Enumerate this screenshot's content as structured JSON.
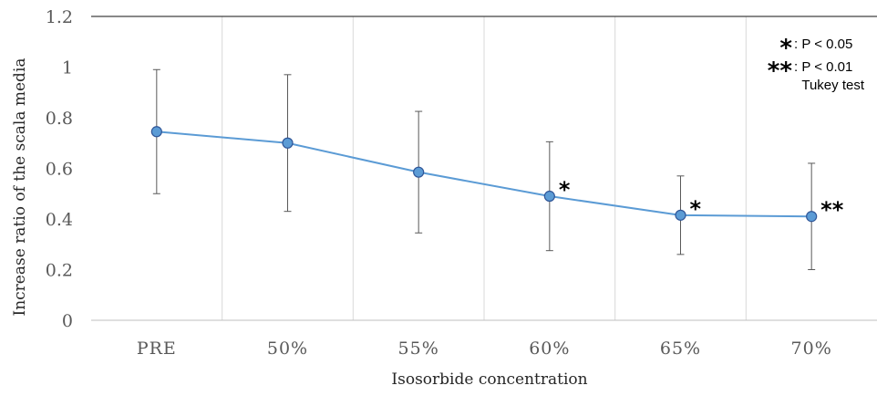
{
  "chart_data": {
    "type": "line",
    "title": "",
    "xlabel": "Isosorbide concentration",
    "ylabel": "Increase ratio of the scala media",
    "ylim": [
      0,
      1.2
    ],
    "yticks": [
      "0",
      "0.2",
      "0.4",
      "0.6",
      "0.8",
      "1",
      "1.2"
    ],
    "categories": [
      "PRE",
      "50%",
      "55%",
      "60%",
      "65%",
      "70%"
    ],
    "series": [
      {
        "values": [
          0.745,
          0.7,
          0.585,
          0.49,
          0.415,
          0.41
        ],
        "error": [
          0.245,
          0.27,
          0.24,
          0.215,
          0.155,
          0.21
        ],
        "color": "#5B9BD5"
      }
    ],
    "significance": [
      "",
      "",
      "",
      "*",
      "*",
      "**"
    ],
    "legend": {
      "position": "top-right",
      "entries": [
        {
          "symbol": "*",
          "text": ": P < 0.05"
        },
        {
          "symbol": "**",
          "text": ": P < 0.01"
        }
      ],
      "note": "Tukey test"
    },
    "grid": {
      "vertical": true,
      "horizontal": false
    }
  }
}
